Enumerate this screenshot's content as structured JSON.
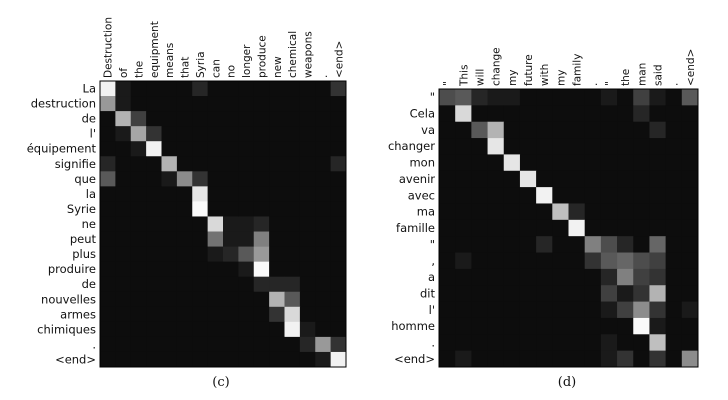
{
  "panels": [
    {
      "id": "c",
      "caption": "(c)",
      "cols": [
        "Destruction",
        "of",
        "the",
        "equipment",
        "means",
        "that",
        "Syria",
        "can",
        "no",
        "longer",
        "produce",
        "new",
        "chemical",
        "weapons",
        ".",
        "<end>"
      ],
      "rows": [
        "La",
        "destruction",
        "de",
        "l'",
        "équipement",
        "signifie",
        "que",
        "la",
        "Syrie",
        "ne",
        "peut",
        "plus",
        "produire",
        "de",
        "nouvelles",
        "armes",
        "chimiques",
        ".",
        "<end>"
      ],
      "attention": [
        [
          0.95,
          0.1,
          0.05,
          0.05,
          0.05,
          0.05,
          0.15,
          0.05,
          0.05,
          0.05,
          0.05,
          0.05,
          0.05,
          0.05,
          0.05,
          0.2
        ],
        [
          0.6,
          0.1,
          0.05,
          0.05,
          0.05,
          0.05,
          0.05,
          0.05,
          0.05,
          0.05,
          0.05,
          0.05,
          0.05,
          0.05,
          0.05,
          0.05
        ],
        [
          0.05,
          0.7,
          0.25,
          0.05,
          0.05,
          0.05,
          0.05,
          0.05,
          0.05,
          0.05,
          0.05,
          0.05,
          0.05,
          0.05,
          0.05,
          0.05
        ],
        [
          0.05,
          0.1,
          0.65,
          0.2,
          0.05,
          0.05,
          0.05,
          0.05,
          0.05,
          0.05,
          0.05,
          0.05,
          0.05,
          0.05,
          0.05,
          0.05
        ],
        [
          0.05,
          0.05,
          0.1,
          0.95,
          0.05,
          0.05,
          0.05,
          0.05,
          0.05,
          0.05,
          0.05,
          0.05,
          0.05,
          0.05,
          0.05,
          0.05
        ],
        [
          0.15,
          0.05,
          0.05,
          0.05,
          0.7,
          0.05,
          0.05,
          0.05,
          0.05,
          0.05,
          0.05,
          0.05,
          0.05,
          0.05,
          0.05,
          0.15
        ],
        [
          0.35,
          0.05,
          0.05,
          0.05,
          0.1,
          0.55,
          0.2,
          0.05,
          0.05,
          0.05,
          0.05,
          0.05,
          0.05,
          0.05,
          0.05,
          0.05
        ],
        [
          0.05,
          0.05,
          0.05,
          0.05,
          0.05,
          0.05,
          0.9,
          0.05,
          0.05,
          0.05,
          0.05,
          0.05,
          0.05,
          0.05,
          0.05,
          0.05
        ],
        [
          0.05,
          0.05,
          0.05,
          0.05,
          0.05,
          0.05,
          0.98,
          0.05,
          0.05,
          0.05,
          0.05,
          0.05,
          0.05,
          0.05,
          0.05,
          0.05
        ],
        [
          0.05,
          0.05,
          0.05,
          0.05,
          0.05,
          0.05,
          0.05,
          0.85,
          0.1,
          0.1,
          0.15,
          0.05,
          0.05,
          0.05,
          0.05,
          0.05
        ],
        [
          0.05,
          0.05,
          0.05,
          0.05,
          0.05,
          0.05,
          0.05,
          0.45,
          0.1,
          0.1,
          0.5,
          0.05,
          0.05,
          0.05,
          0.05,
          0.05
        ],
        [
          0.05,
          0.05,
          0.05,
          0.05,
          0.05,
          0.05,
          0.05,
          0.1,
          0.15,
          0.35,
          0.6,
          0.05,
          0.05,
          0.05,
          0.05,
          0.05
        ],
        [
          0.05,
          0.05,
          0.05,
          0.05,
          0.05,
          0.05,
          0.05,
          0.05,
          0.05,
          0.1,
          0.98,
          0.05,
          0.05,
          0.05,
          0.05,
          0.05
        ],
        [
          0.05,
          0.05,
          0.05,
          0.05,
          0.05,
          0.05,
          0.05,
          0.05,
          0.05,
          0.05,
          0.15,
          0.15,
          0.15,
          0.05,
          0.05,
          0.05
        ],
        [
          0.05,
          0.05,
          0.05,
          0.05,
          0.05,
          0.05,
          0.05,
          0.05,
          0.05,
          0.05,
          0.05,
          0.7,
          0.35,
          0.05,
          0.05,
          0.05
        ],
        [
          0.05,
          0.05,
          0.05,
          0.05,
          0.05,
          0.05,
          0.05,
          0.05,
          0.05,
          0.05,
          0.05,
          0.2,
          0.85,
          0.05,
          0.05,
          0.05
        ],
        [
          0.05,
          0.05,
          0.05,
          0.05,
          0.05,
          0.05,
          0.05,
          0.05,
          0.05,
          0.05,
          0.05,
          0.05,
          0.95,
          0.1,
          0.05,
          0.05
        ],
        [
          0.05,
          0.05,
          0.05,
          0.05,
          0.05,
          0.05,
          0.05,
          0.05,
          0.05,
          0.05,
          0.05,
          0.05,
          0.05,
          0.15,
          0.6,
          0.2
        ],
        [
          0.05,
          0.05,
          0.05,
          0.05,
          0.05,
          0.05,
          0.05,
          0.05,
          0.05,
          0.05,
          0.05,
          0.05,
          0.05,
          0.05,
          0.1,
          0.95
        ]
      ]
    },
    {
      "id": "d",
      "caption": "(d)",
      "cols": [
        "\"",
        "This",
        "will",
        "change",
        "my",
        "future",
        "with",
        "my",
        "family",
        ".",
        "\"",
        "the",
        "man",
        "said",
        ".",
        "<end>"
      ],
      "rows": [
        "\"",
        "Cela",
        "va",
        "changer",
        "mon",
        "avenir",
        "avec",
        "ma",
        "famille",
        "\"",
        ",",
        "a",
        "dit",
        "l'",
        "homme",
        ".",
        "<end>"
      ],
      "attention": [
        [
          0.3,
          0.35,
          0.15,
          0.1,
          0.1,
          0.05,
          0.05,
          0.05,
          0.05,
          0.05,
          0.1,
          0.05,
          0.25,
          0.1,
          0.05,
          0.35
        ],
        [
          0.05,
          0.85,
          0.05,
          0.05,
          0.05,
          0.05,
          0.05,
          0.05,
          0.05,
          0.05,
          0.05,
          0.05,
          0.15,
          0.05,
          0.05,
          0.05
        ],
        [
          0.05,
          0.05,
          0.35,
          0.7,
          0.05,
          0.05,
          0.05,
          0.05,
          0.05,
          0.05,
          0.05,
          0.05,
          0.05,
          0.15,
          0.05,
          0.05
        ],
        [
          0.05,
          0.05,
          0.05,
          0.9,
          0.05,
          0.05,
          0.05,
          0.05,
          0.05,
          0.05,
          0.05,
          0.05,
          0.05,
          0.05,
          0.05,
          0.05
        ],
        [
          0.05,
          0.05,
          0.05,
          0.05,
          0.9,
          0.05,
          0.05,
          0.05,
          0.05,
          0.05,
          0.05,
          0.05,
          0.05,
          0.05,
          0.05,
          0.05
        ],
        [
          0.05,
          0.05,
          0.05,
          0.05,
          0.05,
          0.9,
          0.05,
          0.05,
          0.05,
          0.05,
          0.05,
          0.05,
          0.05,
          0.05,
          0.05,
          0.05
        ],
        [
          0.05,
          0.05,
          0.05,
          0.05,
          0.05,
          0.05,
          0.95,
          0.05,
          0.05,
          0.05,
          0.05,
          0.05,
          0.05,
          0.05,
          0.05,
          0.05
        ],
        [
          0.05,
          0.05,
          0.05,
          0.05,
          0.05,
          0.05,
          0.05,
          0.75,
          0.15,
          0.05,
          0.05,
          0.05,
          0.05,
          0.05,
          0.05,
          0.05
        ],
        [
          0.05,
          0.05,
          0.05,
          0.05,
          0.05,
          0.05,
          0.05,
          0.05,
          0.95,
          0.05,
          0.05,
          0.05,
          0.05,
          0.05,
          0.05,
          0.05
        ],
        [
          0.05,
          0.05,
          0.05,
          0.05,
          0.05,
          0.05,
          0.15,
          0.05,
          0.05,
          0.5,
          0.3,
          0.15,
          0.05,
          0.4,
          0.05,
          0.05
        ],
        [
          0.05,
          0.1,
          0.05,
          0.05,
          0.05,
          0.05,
          0.05,
          0.05,
          0.05,
          0.2,
          0.35,
          0.4,
          0.3,
          0.25,
          0.05,
          0.05
        ],
        [
          0.05,
          0.05,
          0.05,
          0.05,
          0.05,
          0.05,
          0.05,
          0.05,
          0.05,
          0.05,
          0.15,
          0.5,
          0.25,
          0.2,
          0.05,
          0.05
        ],
        [
          0.05,
          0.05,
          0.05,
          0.05,
          0.05,
          0.05,
          0.05,
          0.05,
          0.05,
          0.05,
          0.25,
          0.1,
          0.2,
          0.7,
          0.05,
          0.05
        ],
        [
          0.05,
          0.05,
          0.05,
          0.05,
          0.05,
          0.05,
          0.05,
          0.05,
          0.05,
          0.05,
          0.1,
          0.25,
          0.55,
          0.2,
          0.05,
          0.1
        ],
        [
          0.05,
          0.05,
          0.05,
          0.05,
          0.05,
          0.05,
          0.05,
          0.05,
          0.05,
          0.05,
          0.05,
          0.05,
          0.98,
          0.1,
          0.05,
          0.05
        ],
        [
          0.05,
          0.05,
          0.05,
          0.05,
          0.05,
          0.05,
          0.05,
          0.05,
          0.05,
          0.05,
          0.1,
          0.05,
          0.05,
          0.75,
          0.05,
          0.05
        ],
        [
          0.05,
          0.1,
          0.05,
          0.05,
          0.05,
          0.05,
          0.05,
          0.05,
          0.05,
          0.05,
          0.1,
          0.2,
          0.05,
          0.2,
          0.05,
          0.55
        ]
      ]
    }
  ]
}
